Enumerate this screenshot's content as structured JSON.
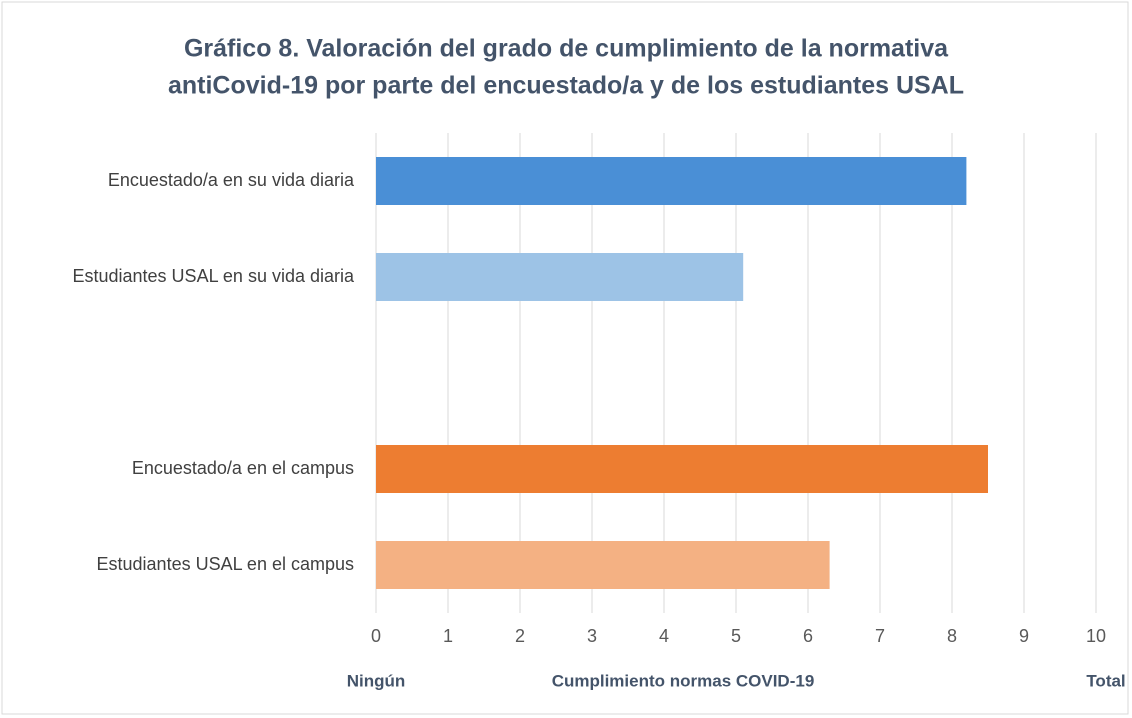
{
  "chart_data": {
    "type": "bar",
    "orientation": "horizontal",
    "title": [
      "Gráfico 8. Valoración del grado de cumplimiento de la normativa",
      "antiCovid-19 por parte del encuestado/a y de los estudiantes USAL"
    ],
    "categories": [
      "Encuestado/a en su vida diaria",
      "Estudiantes USAL en su vida diaria",
      null,
      "Encuestado/a en el campus",
      "Estudiantes USAL en el campus"
    ],
    "values": [
      8.2,
      5.1,
      null,
      8.5,
      6.3
    ],
    "colors": [
      "#4a8fd6",
      "#9dc3e6",
      null,
      "#ed7d31",
      "#f4b183"
    ],
    "xlim": [
      0,
      10
    ],
    "xticks": [
      0,
      1,
      2,
      3,
      4,
      5,
      6,
      7,
      8,
      9,
      10
    ],
    "grid": true,
    "xlabel": "Cumplimiento normas COVID-19",
    "annotations": [
      "Ningún",
      "Total"
    ]
  }
}
